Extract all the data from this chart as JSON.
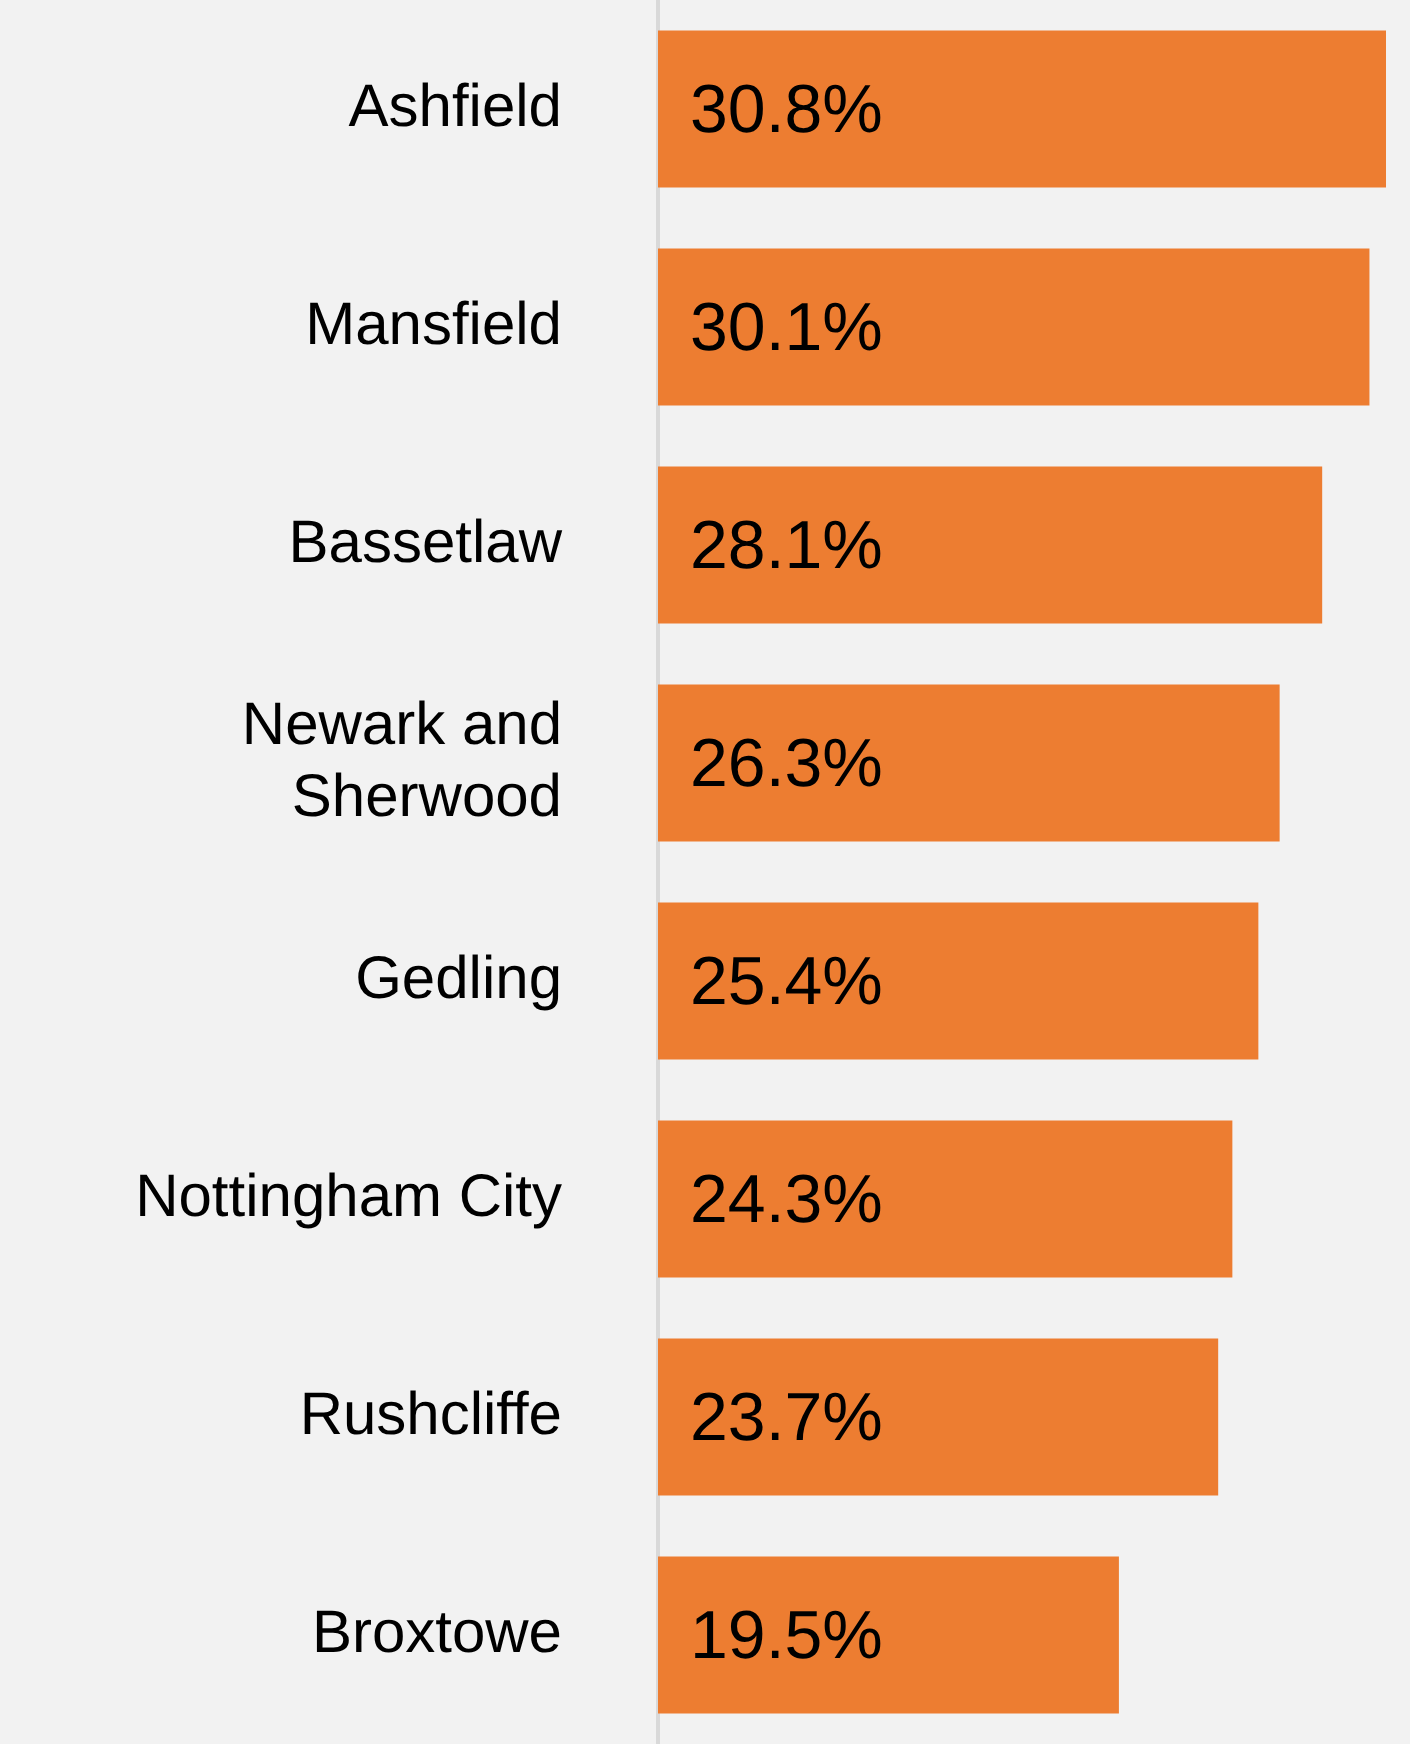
{
  "chart_data": {
    "type": "bar",
    "orientation": "horizontal",
    "categories": [
      "Ashfield",
      "Mansfield",
      "Bassetlaw",
      "Newark and Sherwood",
      "Gedling",
      "Nottingham City",
      "Rushcliffe",
      "Broxtowe"
    ],
    "values": [
      30.8,
      30.1,
      28.1,
      26.3,
      25.4,
      24.3,
      23.7,
      19.5
    ],
    "color": "#ed7d31",
    "data_labels": true,
    "value_labels": [
      "30.8%",
      "30.1%",
      "28.1%",
      "26.3%",
      "25.4%",
      "24.3%",
      "23.7%",
      "19.5%"
    ]
  }
}
